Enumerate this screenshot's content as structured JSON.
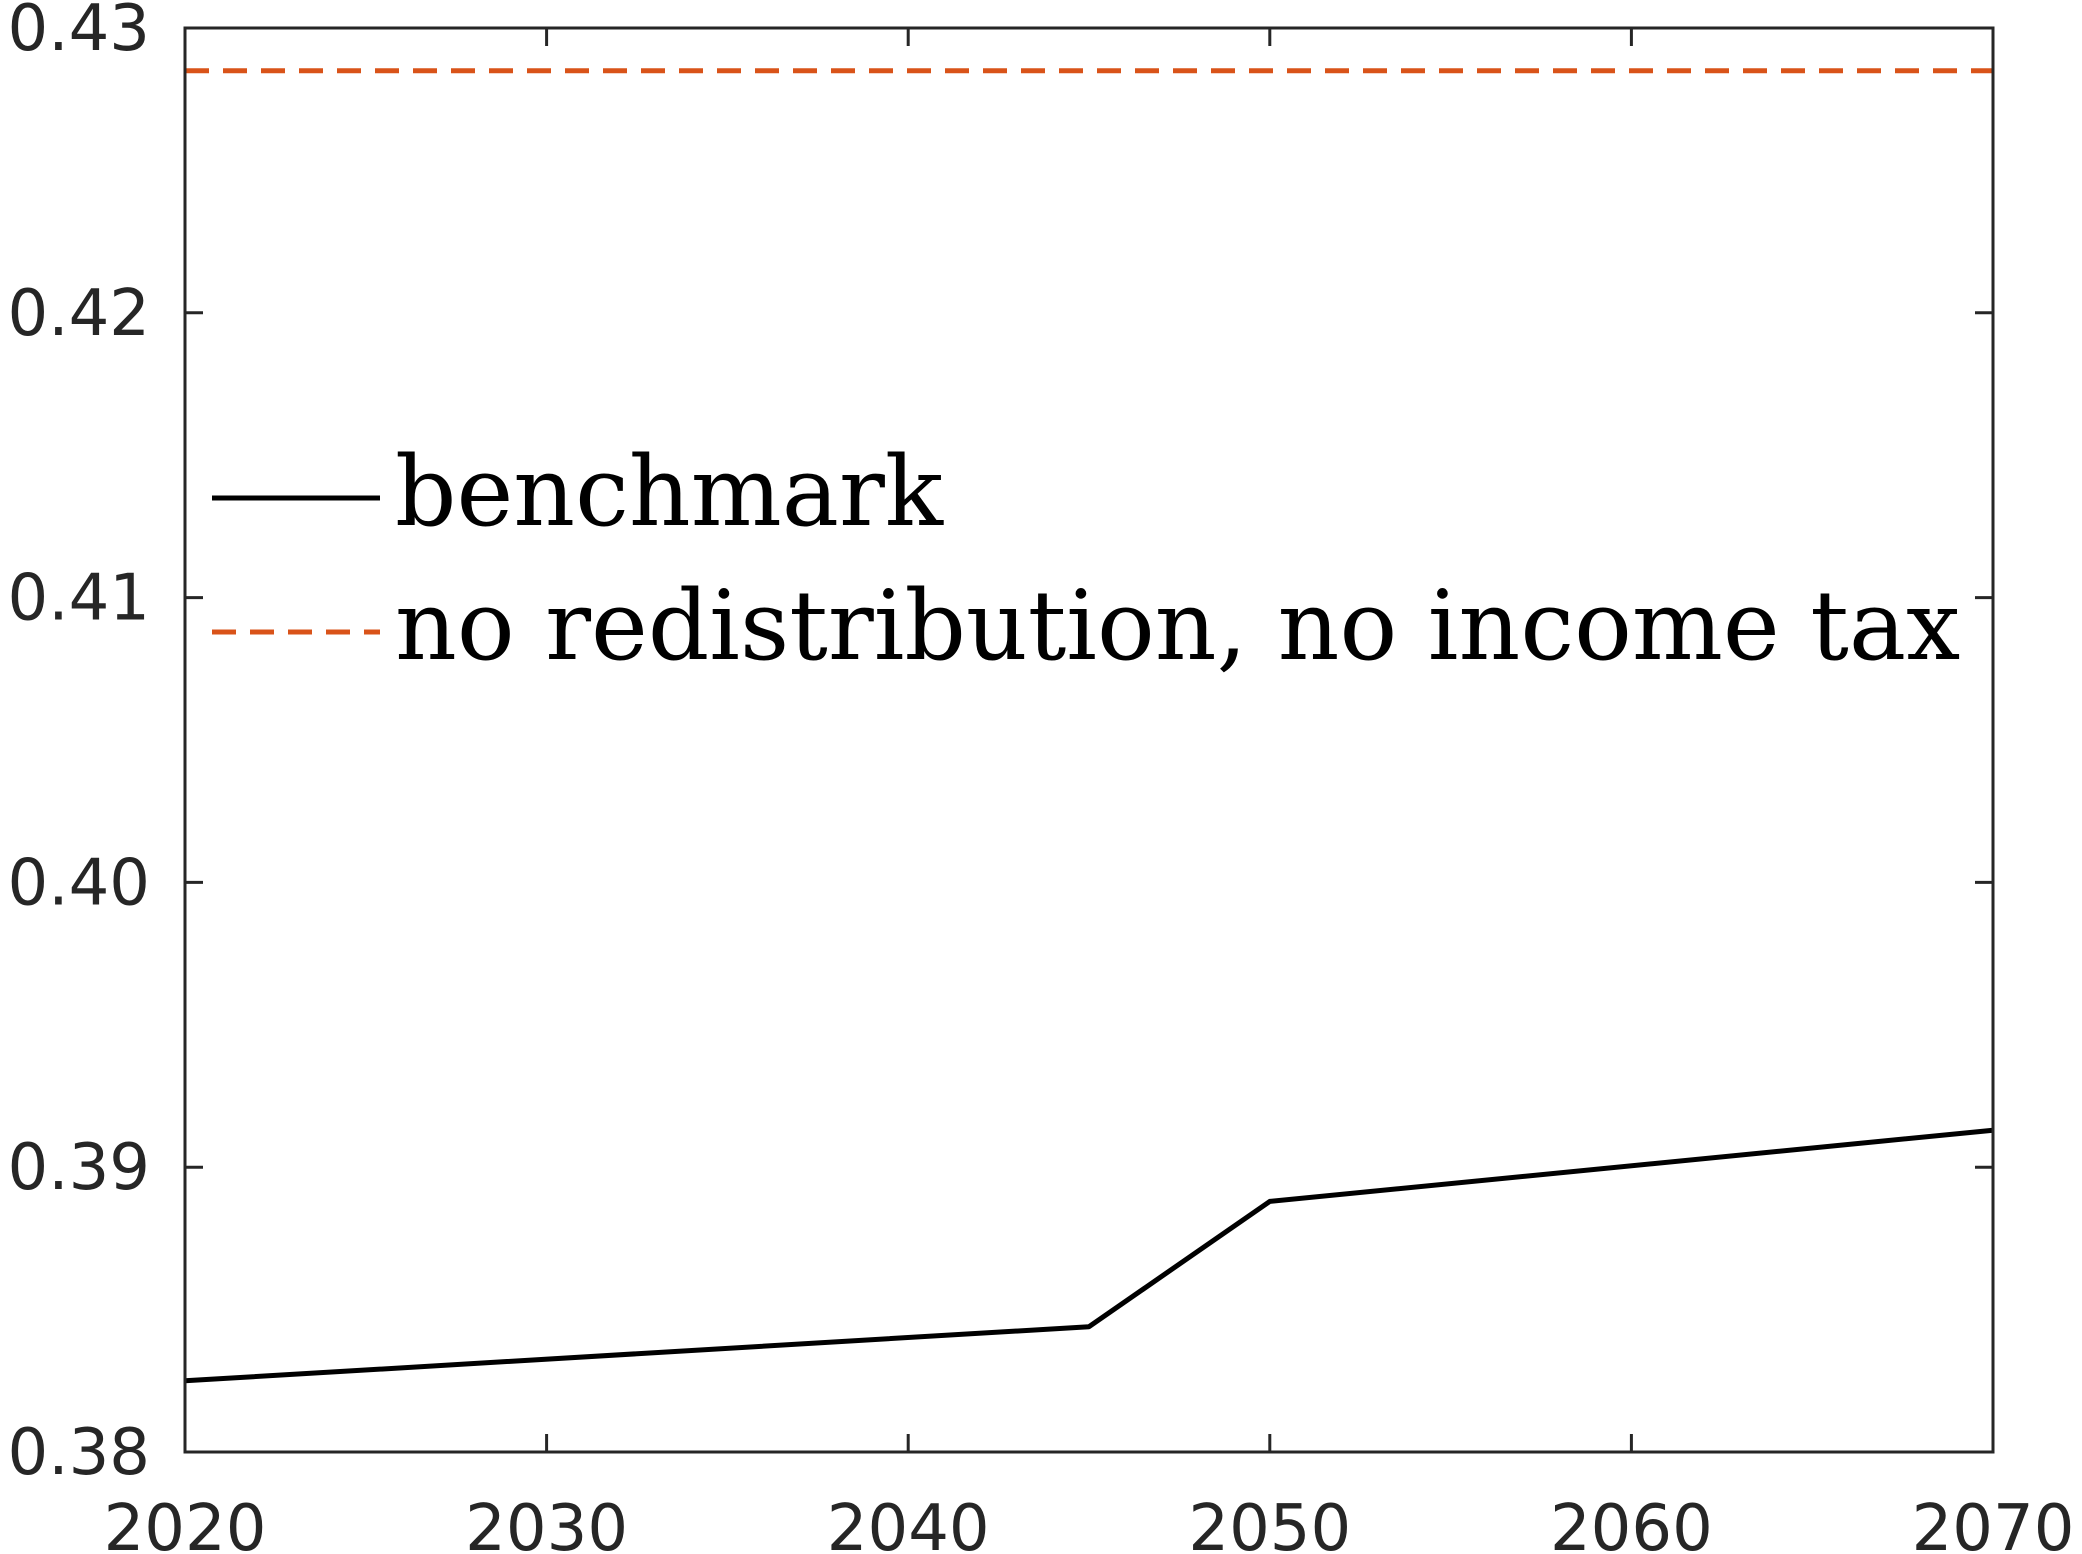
{
  "chart_data": {
    "type": "line",
    "title": "",
    "xlabel": "",
    "ylabel": "",
    "xlim": [
      2020,
      2070
    ],
    "ylim": [
      0.38,
      0.43
    ],
    "xticks": [
      "2020",
      "2030",
      "2040",
      "2050",
      "2060",
      "2070"
    ],
    "yticks": [
      "0.38",
      "0.39",
      "0.40",
      "0.41",
      "0.42",
      "0.43"
    ],
    "grid": false,
    "legend_position": "center-left",
    "series": [
      {
        "name": "benchmark",
        "color": "#000000",
        "style": "solid",
        "x": [
          2020,
          2045,
          2050,
          2070
        ],
        "y": [
          0.3825,
          0.3844,
          0.3888,
          0.3913
        ]
      },
      {
        "name": "no redistribution, no income tax",
        "color": "#D95319",
        "style": "dashed",
        "x": [
          2020,
          2070
        ],
        "y": [
          0.4285,
          0.4285
        ]
      }
    ]
  }
}
